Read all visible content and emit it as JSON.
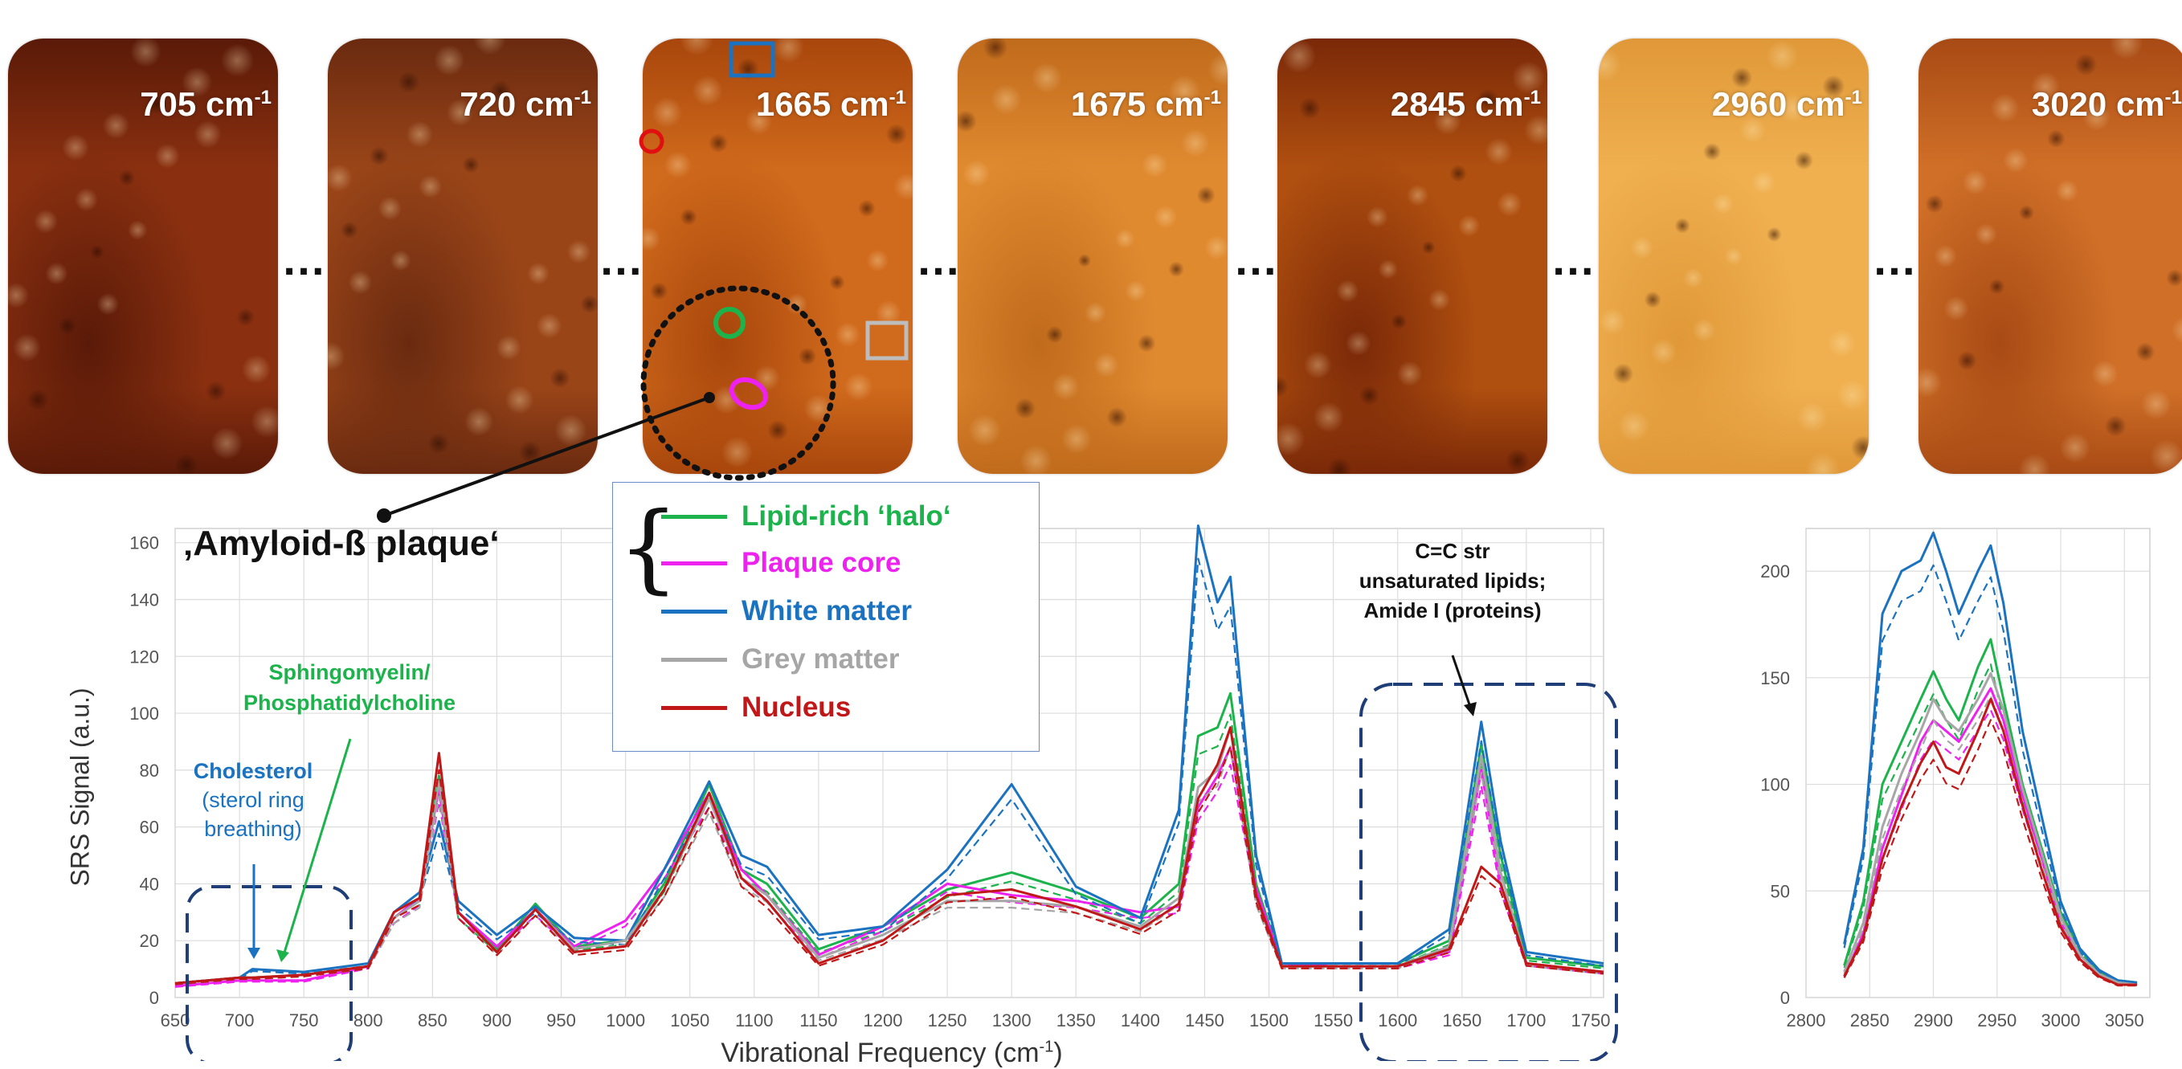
{
  "panels": [
    {
      "label": "705 cm",
      "exp": "-1",
      "hue": "#8a3010",
      "hue2": "#5a1a08"
    },
    {
      "label": "720 cm",
      "exp": "-1",
      "hue": "#9a4518",
      "hue2": "#6a2a10"
    },
    {
      "label": "1665 cm",
      "exp": "-1",
      "hue": "#d06a1c",
      "hue2": "#a8460c"
    },
    {
      "label": "1675 cm",
      "exp": "-1",
      "hue": "#e08a30",
      "hue2": "#c06a1c"
    },
    {
      "label": "2845 cm",
      "exp": "-1",
      "hue": "#b05010",
      "hue2": "#7a2808"
    },
    {
      "label": "2960 cm",
      "exp": "-1",
      "hue": "#f0b050",
      "hue2": "#e09838"
    },
    {
      "label": "3020 cm",
      "exp": "-1",
      "hue": "#d07028",
      "hue2": "#a84a14"
    }
  ],
  "ellipsis": "…",
  "plaque_label": "‚Amyloid-ß plaque‘",
  "legend": [
    {
      "label": "Lipid-rich ‘halo‘",
      "color": "#1db34c"
    },
    {
      "label": "Plaque core",
      "color": "#ee22ee"
    },
    {
      "label": "White matter",
      "color": "#1a72c0"
    },
    {
      "label": "Grey matter",
      "color": "#a6a6a6"
    },
    {
      "label": "Nucleus",
      "color": "#c01818"
    }
  ],
  "annotations": {
    "sphingo": [
      "Sphingomyelin/",
      "Phosphatidylcholine"
    ],
    "cholesterol_title": "Cholesterol",
    "cholesterol_sub": [
      "(sterol ring",
      "breathing)"
    ],
    "ccstr": [
      "C=C str",
      "unsaturated lipids;",
      "Amide I (proteins)"
    ]
  },
  "axis_labels": {
    "y": "SRS Signal (a.u.)",
    "x": "Vibrational Frequency (cm",
    "x_exp": "-1",
    "x_close": ")"
  },
  "chart_data": [
    {
      "type": "line",
      "xlim": [
        650,
        1760
      ],
      "ylim": [
        0,
        165
      ],
      "xticks": [
        650,
        700,
        750,
        800,
        850,
        900,
        950,
        1000,
        1050,
        1100,
        1150,
        1200,
        1250,
        1300,
        1350,
        1400,
        1450,
        1500,
        1550,
        1600,
        1650,
        1700,
        1750
      ],
      "yticks": [
        0,
        20,
        40,
        60,
        80,
        100,
        120,
        140,
        160
      ],
      "grid": true,
      "xlabel": "Vibrational Frequency (cm-1)",
      "ylabel": "SRS Signal (a.u.)",
      "x": [
        650,
        700,
        710,
        750,
        800,
        820,
        840,
        855,
        870,
        900,
        930,
        960,
        1000,
        1030,
        1065,
        1090,
        1110,
        1150,
        1200,
        1250,
        1300,
        1350,
        1400,
        1430,
        1445,
        1460,
        1470,
        1490,
        1510,
        1550,
        1600,
        1640,
        1665,
        1680,
        1700,
        1760
      ],
      "series": [
        {
          "name": "Lipid-rich ‘halo‘",
          "color": "#1db34c",
          "values": [
            5,
            7,
            7,
            8,
            11,
            28,
            35,
            78,
            30,
            17,
            33,
            18,
            20,
            40,
            75,
            45,
            40,
            17,
            25,
            38,
            44,
            37,
            28,
            40,
            92,
            95,
            107,
            40,
            12,
            12,
            12,
            20,
            89,
            50,
            14,
            11
          ]
        },
        {
          "name": "Plaque core",
          "color": "#ee22ee",
          "values": [
            4,
            6,
            6,
            6,
            11,
            28,
            35,
            74,
            30,
            18,
            31,
            18,
            27,
            45,
            72,
            45,
            36,
            15,
            25,
            40,
            36,
            34,
            30,
            32,
            67,
            78,
            88,
            38,
            12,
            11,
            11,
            16,
            80,
            40,
            12,
            9
          ]
        },
        {
          "name": "White matter",
          "color": "#1a72c0",
          "values": [
            5,
            7,
            10,
            9,
            12,
            30,
            37,
            62,
            34,
            22,
            32,
            21,
            20,
            45,
            76,
            50,
            46,
            22,
            25,
            45,
            75,
            39,
            28,
            66,
            166,
            139,
            148,
            50,
            12,
            12,
            12,
            24,
            97,
            55,
            16,
            12
          ]
        },
        {
          "name": "Grey matter",
          "color": "#a6a6a6",
          "values": [
            5,
            7,
            7,
            8,
            11,
            28,
            34,
            76,
            30,
            16,
            31,
            17,
            20,
            38,
            70,
            42,
            36,
            14,
            22,
            34,
            34,
            32,
            25,
            35,
            74,
            80,
            95,
            35,
            11,
            11,
            11,
            18,
            85,
            44,
            12,
            9
          ]
        },
        {
          "name": "Nucleus",
          "color": "#c01818",
          "values": [
            5,
            7,
            7,
            8,
            11,
            30,
            35,
            86,
            30,
            16,
            31,
            16,
            18,
            38,
            72,
            42,
            34,
            12,
            20,
            36,
            38,
            32,
            24,
            33,
            70,
            82,
            95,
            36,
            11,
            11,
            11,
            17,
            46,
            40,
            12,
            9
          ]
        }
      ]
    },
    {
      "type": "line",
      "xlim": [
        2800,
        3070
      ],
      "ylim": [
        0,
        220
      ],
      "xticks": [
        2800,
        2850,
        2900,
        2950,
        3000,
        3050
      ],
      "yticks": [
        0,
        50,
        100,
        150,
        200
      ],
      "grid": true,
      "x": [
        2830,
        2845,
        2860,
        2875,
        2890,
        2900,
        2910,
        2920,
        2935,
        2945,
        2955,
        2970,
        2985,
        3000,
        3015,
        3030,
        3045,
        3060
      ],
      "series": [
        {
          "name": "Lipid-rich ‘halo‘",
          "color": "#1db34c",
          "values": [
            15,
            45,
            100,
            120,
            140,
            153,
            140,
            130,
            155,
            168,
            140,
            100,
            70,
            40,
            23,
            12,
            8,
            7
          ]
        },
        {
          "name": "Plaque core",
          "color": "#ee22ee",
          "values": [
            10,
            30,
            70,
            95,
            120,
            130,
            125,
            120,
            135,
            145,
            130,
            95,
            65,
            35,
            20,
            11,
            7,
            6
          ]
        },
        {
          "name": "White matter",
          "color": "#1a72c0",
          "values": [
            25,
            70,
            180,
            200,
            205,
            218,
            200,
            180,
            200,
            212,
            185,
            125,
            85,
            45,
            23,
            13,
            8,
            7
          ]
        },
        {
          "name": "Grey matter",
          "color": "#a6a6a6",
          "values": [
            12,
            35,
            80,
            105,
            125,
            140,
            130,
            125,
            140,
            152,
            135,
            98,
            68,
            38,
            20,
            11,
            7,
            6
          ]
        },
        {
          "name": "Nucleus",
          "color": "#c01818",
          "values": [
            10,
            28,
            65,
            90,
            110,
            120,
            108,
            105,
            125,
            140,
            125,
            90,
            60,
            33,
            18,
            10,
            6,
            6
          ]
        }
      ]
    }
  ]
}
